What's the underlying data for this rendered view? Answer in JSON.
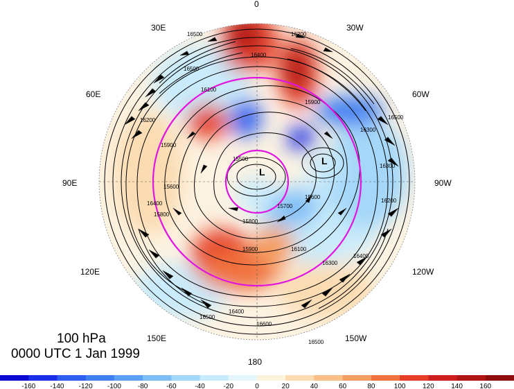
{
  "title": {
    "level": "100 hPa",
    "time": "0000 UTC 1 Jan 1999"
  },
  "longitude_labels": {
    "lon_0": "0",
    "lon_30w": "30W",
    "lon_60w": "60W",
    "lon_90w": "90W",
    "lon_120w": "120W",
    "lon_150w": "150W",
    "lon_180": "180",
    "lon_150e": "150E",
    "lon_120e": "120E",
    "lon_90e": "90E",
    "lon_60e": "60E",
    "lon_30e": "30E"
  },
  "pressure_lows": {
    "low_1": "L",
    "low_2": "L"
  },
  "contour_labels": {
    "c1": "16500",
    "c2": "16500",
    "c3": "16300",
    "c4": "16200",
    "c5": "15900",
    "c6": "15600",
    "c7": "15500",
    "c8": "15700",
    "c9": "15800",
    "c10": "15900",
    "c11": "16100",
    "c12": "16300",
    "c13": "16400",
    "c14": "16500",
    "c15": "16400",
    "c16": "16500",
    "c17": "16500",
    "c18": "15600",
    "c19": "15900",
    "c20": "16200",
    "c21": "16400",
    "c22": "16300",
    "c23": "16200",
    "c24": "15800",
    "c25": "16600",
    "c26": "16100",
    "c27": "16400"
  },
  "colorbar": {
    "ticks": [
      "-160",
      "-140",
      "-120",
      "-100",
      "-80",
      "-60",
      "-40",
      "-20",
      "0",
      "20",
      "40",
      "60",
      "80",
      "100",
      "120",
      "140",
      "160"
    ],
    "colors": [
      "#0a0ad2",
      "#1a2fe6",
      "#2e5ef0",
      "#3f7ff2",
      "#5aa0f5",
      "#7dbef7",
      "#a4d7f9",
      "#c9ebfb",
      "#e7f6fc",
      "#fdf2dc",
      "#fbdcb2",
      "#f8bf86",
      "#f59e62",
      "#f0713e",
      "#e53f2a",
      "#cf1e1e",
      "#b01414",
      "#8e0c0c"
    ]
  }
}
